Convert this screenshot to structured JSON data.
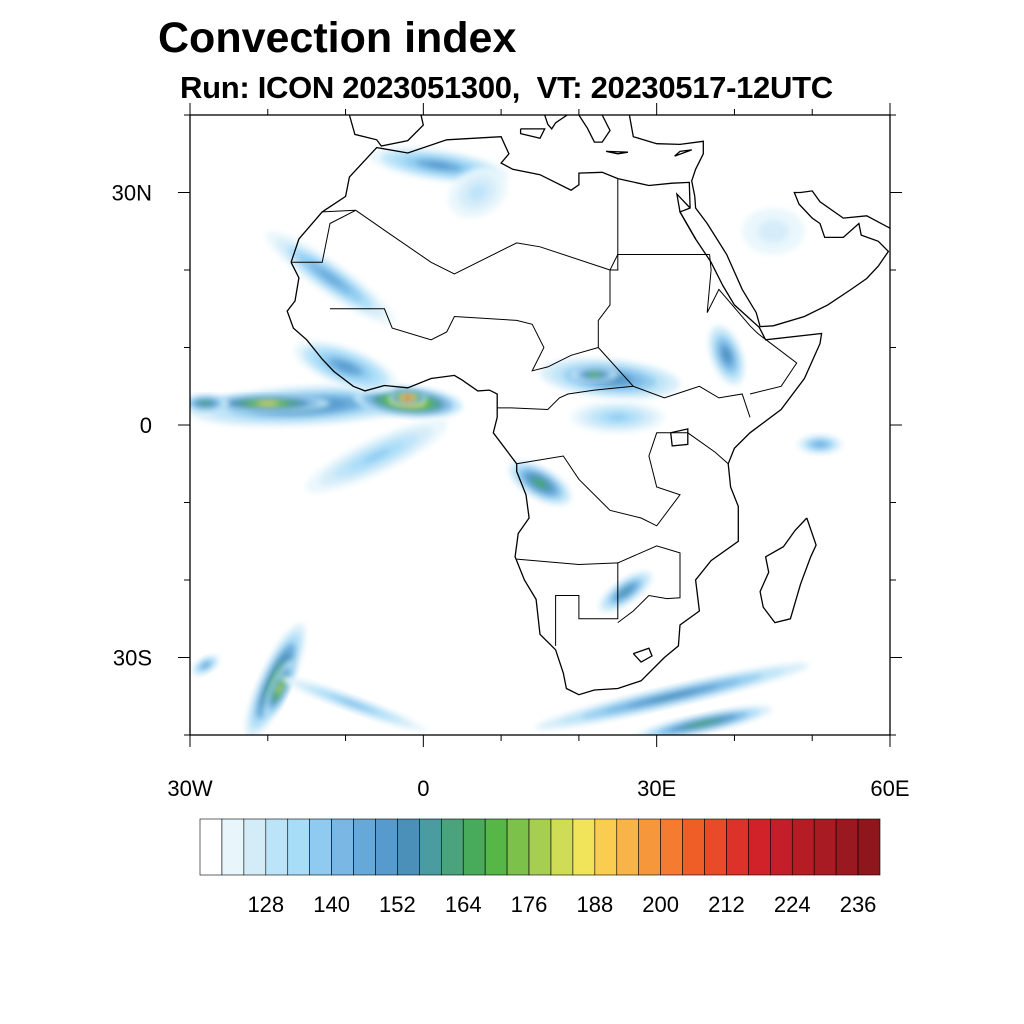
{
  "title": "Convection index",
  "subtitle": "Run: ICON 2023051300,  VT: 20230517-12UTC",
  "chart_data": {
    "type": "heatmap",
    "title": "Convection index",
    "subtitle": "Run: ICON 2023051300,  VT: 20230517-12UTC",
    "lon_range": [
      -30,
      60
    ],
    "lat_range": [
      -40,
      40
    ],
    "x_ticks": [
      {
        "value": -30,
        "label": "30W"
      },
      {
        "value": 0,
        "label": "0"
      },
      {
        "value": 30,
        "label": "30E"
      },
      {
        "value": 60,
        "label": "60E"
      }
    ],
    "y_ticks": [
      {
        "value": 30,
        "label": "30N"
      },
      {
        "value": 0,
        "label": "0"
      },
      {
        "value": -30,
        "label": "30S"
      }
    ],
    "minor_tick_step": 10,
    "colorbar": {
      "levels_start": 120,
      "levels_step": 4,
      "tick_labels": [
        "128",
        "140",
        "152",
        "164",
        "176",
        "188",
        "200",
        "212",
        "224",
        "236"
      ],
      "colors": [
        "#ffffff",
        "#e8f6fc",
        "#d4ecf8",
        "#bce4f8",
        "#a8ddf8",
        "#8fcbf0",
        "#7ab7e4",
        "#66a8d8",
        "#579acd",
        "#4a90b8",
        "#4a9ca0",
        "#4aa37c",
        "#48ab5c",
        "#56b746",
        "#7cc14a",
        "#a6cf52",
        "#cedc56",
        "#f2e45a",
        "#facc50",
        "#f8b448",
        "#f6973c",
        "#f47b30",
        "#f05e28",
        "#e84b28",
        "#dd3229",
        "#d22229",
        "#c31e2a",
        "#b51d25",
        "#a81b23",
        "#9a1920",
        "#8e171d"
      ]
    },
    "features": [
      {
        "name": "gulf-of-guinea-band",
        "lon": -15,
        "lat": 2.5,
        "rx": 15,
        "ry": 2.5,
        "angle": 3,
        "level": 10
      },
      {
        "name": "gulf-of-guinea-band-core-west",
        "lon": -20,
        "lat": 2.8,
        "rx": 8,
        "ry": 1.2,
        "angle": 0,
        "level": 17
      },
      {
        "name": "gulf-of-guinea-coast-core",
        "lon": -2,
        "lat": 3,
        "rx": 7,
        "ry": 2,
        "angle": -5,
        "level": 19
      },
      {
        "name": "gulf-of-guinea-hotspot",
        "lon": -2,
        "lat": 3.5,
        "rx": 2.5,
        "ry": 1,
        "angle": 0,
        "level": 24
      },
      {
        "name": "atlantic-tail",
        "lon": -6,
        "lat": -4,
        "rx": 10,
        "ry": 2.2,
        "angle": 25,
        "level": 5
      },
      {
        "name": "west-africa-coast",
        "lon": -10,
        "lat": 7.5,
        "rx": 7,
        "ry": 2.5,
        "angle": -20,
        "level": 8
      },
      {
        "name": "sahel-band",
        "lon": -12,
        "lat": 19,
        "rx": 10,
        "ry": 2,
        "angle": -35,
        "level": 7
      },
      {
        "name": "morocco-algeria",
        "lon": 2,
        "lat": 33.5,
        "rx": 9,
        "ry": 2,
        "angle": -8,
        "level": 8
      },
      {
        "name": "libya-north",
        "lon": 7,
        "lat": 30,
        "rx": 4,
        "ry": 3,
        "angle": 30,
        "level": 3
      },
      {
        "name": "central-africa",
        "lon": 24,
        "lat": 6,
        "rx": 9,
        "ry": 2.5,
        "angle": -5,
        "level": 9
      },
      {
        "name": "central-africa-core",
        "lon": 22,
        "lat": 6.5,
        "rx": 3,
        "ry": 1,
        "angle": 0,
        "level": 14
      },
      {
        "name": "congo",
        "lon": 25,
        "lat": 1,
        "rx": 6,
        "ry": 2,
        "angle": 0,
        "level": 5
      },
      {
        "name": "angola",
        "lon": 15,
        "lat": -7.5,
        "rx": 4.5,
        "ry": 2,
        "angle": -30,
        "level": 12
      },
      {
        "name": "zimbabwe",
        "lon": 26,
        "lat": -21.5,
        "rx": 4,
        "ry": 1.5,
        "angle": 35,
        "level": 10
      },
      {
        "name": "ethiopia",
        "lon": 39,
        "lat": 9,
        "rx": 2,
        "ry": 4,
        "angle": 20,
        "level": 9
      },
      {
        "name": "south-africa-band",
        "lon": 32,
        "lat": -35,
        "rx": 18,
        "ry": 1.3,
        "angle": 13,
        "level": 9
      },
      {
        "name": "southern-ocean-band",
        "lon": 36,
        "lat": -38.5,
        "rx": 9,
        "ry": 1.2,
        "angle": 12,
        "level": 12
      },
      {
        "name": "sw-atlantic-plume",
        "lon": -19,
        "lat": -33,
        "rx": 8,
        "ry": 2,
        "angle": 65,
        "level": 13
      },
      {
        "name": "sw-atlantic-plume-core",
        "lon": -18.5,
        "lat": -34,
        "rx": 4,
        "ry": 1.2,
        "angle": 65,
        "level": 16
      },
      {
        "name": "sw-atlantic-streak",
        "lon": -9,
        "lat": -36,
        "rx": 10,
        "ry": 1,
        "angle": -20,
        "level": 6
      },
      {
        "name": "indian-ocean",
        "lon": 51,
        "lat": -2.5,
        "rx": 3,
        "ry": 1.3,
        "angle": 0,
        "level": 7
      },
      {
        "name": "arabia",
        "lon": 45,
        "lat": 25,
        "rx": 4,
        "ry": 3,
        "angle": 0,
        "level": 2
      },
      {
        "name": "southwest-atlantic-west",
        "lon": -28,
        "lat": -31,
        "rx": 2,
        "ry": 1,
        "angle": 30,
        "level": 8
      },
      {
        "name": "east-atlantic-north",
        "lon": -28,
        "lat": 2.8,
        "rx": 3,
        "ry": 1.2,
        "angle": 0,
        "level": 12
      }
    ]
  }
}
